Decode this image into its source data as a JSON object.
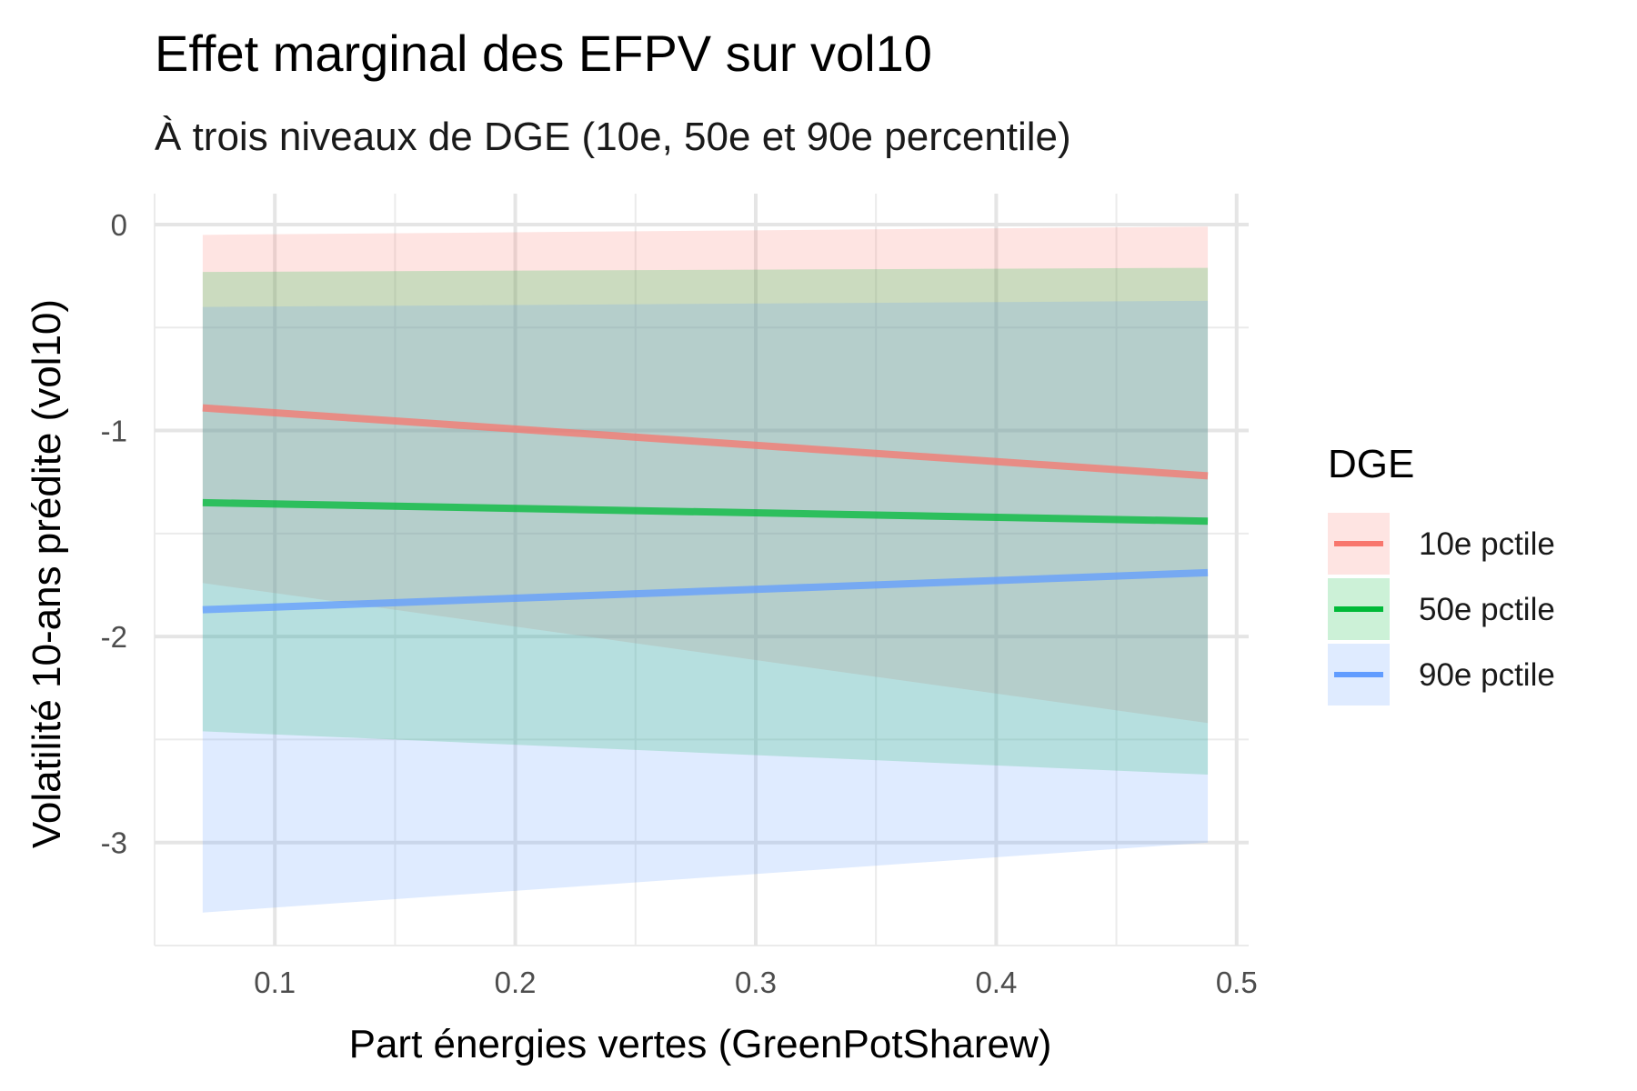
{
  "chart_data": {
    "type": "line",
    "title": "Effet marginal des EFPV sur vol10",
    "subtitle": "À trois niveaux de DGE (10e, 50e et 90e percentile)",
    "xlabel": "Part énergies vertes (GreenPotSharew)",
    "ylabel": "Volatilité 10-ans prédite (vol10)",
    "xlim": [
      0.05,
      0.505
    ],
    "ylim": [
      -3.5,
      0.15
    ],
    "x_ticks": [
      0.1,
      0.2,
      0.3,
      0.4,
      0.5
    ],
    "x_tick_labels": [
      "0.1",
      "0.2",
      "0.3",
      "0.4",
      "0.5"
    ],
    "y_ticks": [
      0,
      -1,
      -2,
      -3
    ],
    "y_tick_labels": [
      "0",
      "-1",
      "-2",
      "-3"
    ],
    "grid": true,
    "legend": {
      "title": "DGE",
      "position": "right"
    },
    "series": [
      {
        "name": "10e pctile",
        "color": "#F8766D",
        "x": [
          0.07,
          0.488
        ],
        "y": [
          -0.89,
          -1.22
        ],
        "lower": [
          -1.74,
          -2.42
        ],
        "upper": [
          -0.05,
          -0.01
        ]
      },
      {
        "name": "50e pctile",
        "color": "#00BA38",
        "x": [
          0.07,
          0.488
        ],
        "y": [
          -1.35,
          -1.44
        ],
        "lower": [
          -2.46,
          -2.67
        ],
        "upper": [
          -0.23,
          -0.21
        ]
      },
      {
        "name": "90e pctile",
        "color": "#619CFF",
        "x": [
          0.07,
          0.488
        ],
        "y": [
          -1.87,
          -1.69
        ],
        "lower": [
          -3.34,
          -3.0
        ],
        "upper": [
          -0.4,
          -0.37
        ]
      }
    ]
  }
}
